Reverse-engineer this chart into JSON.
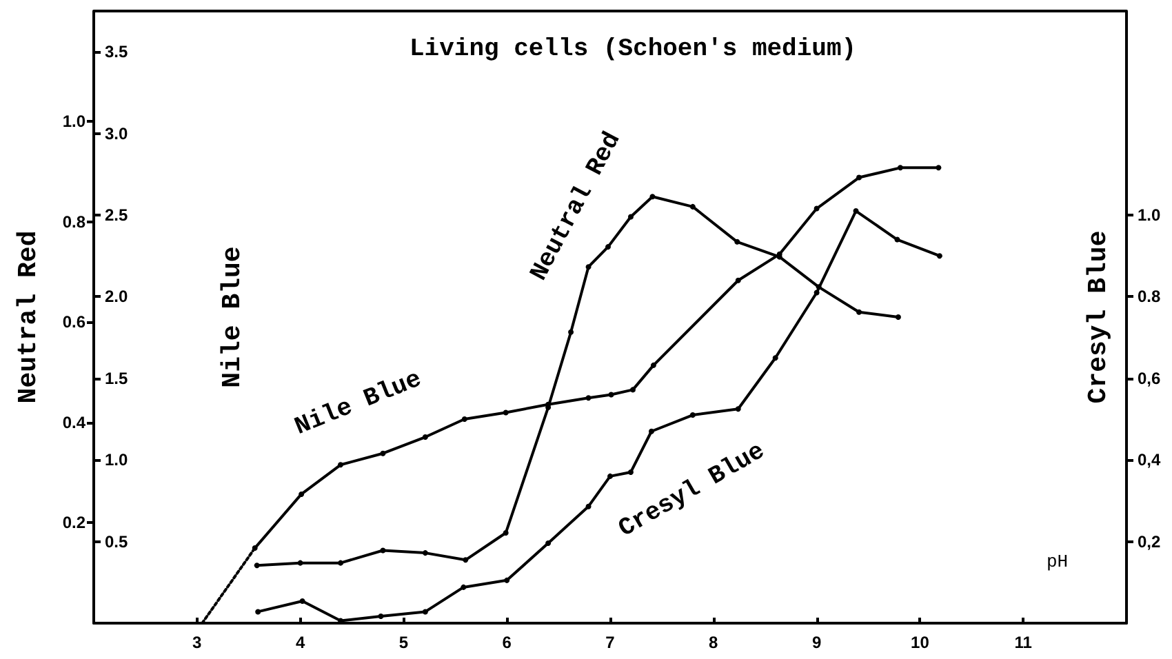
{
  "chart_data": {
    "type": "line",
    "title": "Living cells (Schoen's medium)",
    "xlabel": "pH",
    "ylabel": "Neutral Red",
    "y2label": "Nile Blue",
    "y3label": "Cresyl Blue",
    "xlim": [
      2,
      12
    ],
    "xticks": [
      3,
      4,
      5,
      6,
      7,
      8,
      9,
      10,
      11
    ],
    "ylim": [
      0,
      1.22
    ],
    "yticks": [
      {
        "value": 0.2,
        "label": "0.2"
      },
      {
        "value": 0.4,
        "label": "0.4"
      },
      {
        "value": 0.6,
        "label": "0.6"
      },
      {
        "value": 0.8,
        "label": "0.8"
      },
      {
        "value": 1.0,
        "label": "1.0"
      }
    ],
    "y2lim": [
      0,
      3.75
    ],
    "y2ticks": [
      {
        "value": 0.5,
        "label": "0.5"
      },
      {
        "value": 1.0,
        "label": "1.0"
      },
      {
        "value": 1.5,
        "label": "1.5"
      },
      {
        "value": 2.0,
        "label": "2.0"
      },
      {
        "value": 2.5,
        "label": "2.5"
      },
      {
        "value": 3.0,
        "label": "3.0"
      },
      {
        "value": 3.5,
        "label": "3.5"
      }
    ],
    "y3lim": [
      0,
      1.5
    ],
    "y3ticks": [
      {
        "value": 0.2,
        "label": "0,2"
      },
      {
        "value": 0.4,
        "label": "0,4"
      },
      {
        "value": 0.6,
        "label": "0,6"
      },
      {
        "value": 0.8,
        "label": "0.8"
      },
      {
        "value": 1.0,
        "label": "1.0"
      }
    ],
    "grid": false,
    "legend": false,
    "marker": "circle",
    "line_style": "solid",
    "series": [
      {
        "name": "Nile Blue",
        "color": "#000000",
        "axis": "y2",
        "x": [
          3.56,
          4.01,
          4.39,
          4.8,
          5.21,
          5.59,
          5.99,
          6.4,
          6.79,
          7.01,
          7.22,
          7.42,
          8.24,
          8.64,
          9.0,
          9.41,
          9.81,
          10.18
        ],
        "values": [
          0.46,
          0.79,
          0.97,
          1.04,
          1.14,
          1.25,
          1.29,
          1.34,
          1.38,
          1.4,
          1.43,
          1.58,
          2.1,
          2.26,
          2.54,
          2.73,
          2.79,
          2.79
        ]
      },
      {
        "color": "#000000",
        "axis": "y2",
        "line_style": "dotted",
        "marker": "none",
        "x": [
          3.05,
          3.56
        ],
        "values": [
          0,
          0.46
        ]
      },
      {
        "name": "Neutral Red",
        "color": "#000000",
        "axis": "y",
        "x": [
          3.58,
          4.0,
          4.39,
          4.8,
          5.21,
          5.6,
          5.99,
          6.4,
          6.62,
          6.79,
          6.98,
          7.2,
          7.41,
          7.8,
          8.23,
          8.64,
          9.02,
          9.41,
          9.79
        ],
        "values": [
          0.115,
          0.12,
          0.12,
          0.145,
          0.14,
          0.126,
          0.18,
          0.43,
          0.58,
          0.71,
          0.75,
          0.81,
          0.85,
          0.83,
          0.76,
          0.73,
          0.67,
          0.62,
          0.61
        ]
      },
      {
        "name": "Cresyl Blue",
        "color": "#000000",
        "axis": "y3",
        "x": [
          3.59,
          4.02,
          4.39,
          4.78,
          5.21,
          5.58,
          6.0,
          6.4,
          6.79,
          7.0,
          7.2,
          7.4,
          7.8,
          8.24,
          8.6,
          9.0,
          9.38,
          9.78,
          10.19
        ],
        "values": [
          0.028,
          0.054,
          0.006,
          0.017,
          0.028,
          0.088,
          0.105,
          0.196,
          0.286,
          0.36,
          0.37,
          0.47,
          0.51,
          0.525,
          0.65,
          0.81,
          1.01,
          0.94,
          0.9
        ]
      }
    ]
  }
}
